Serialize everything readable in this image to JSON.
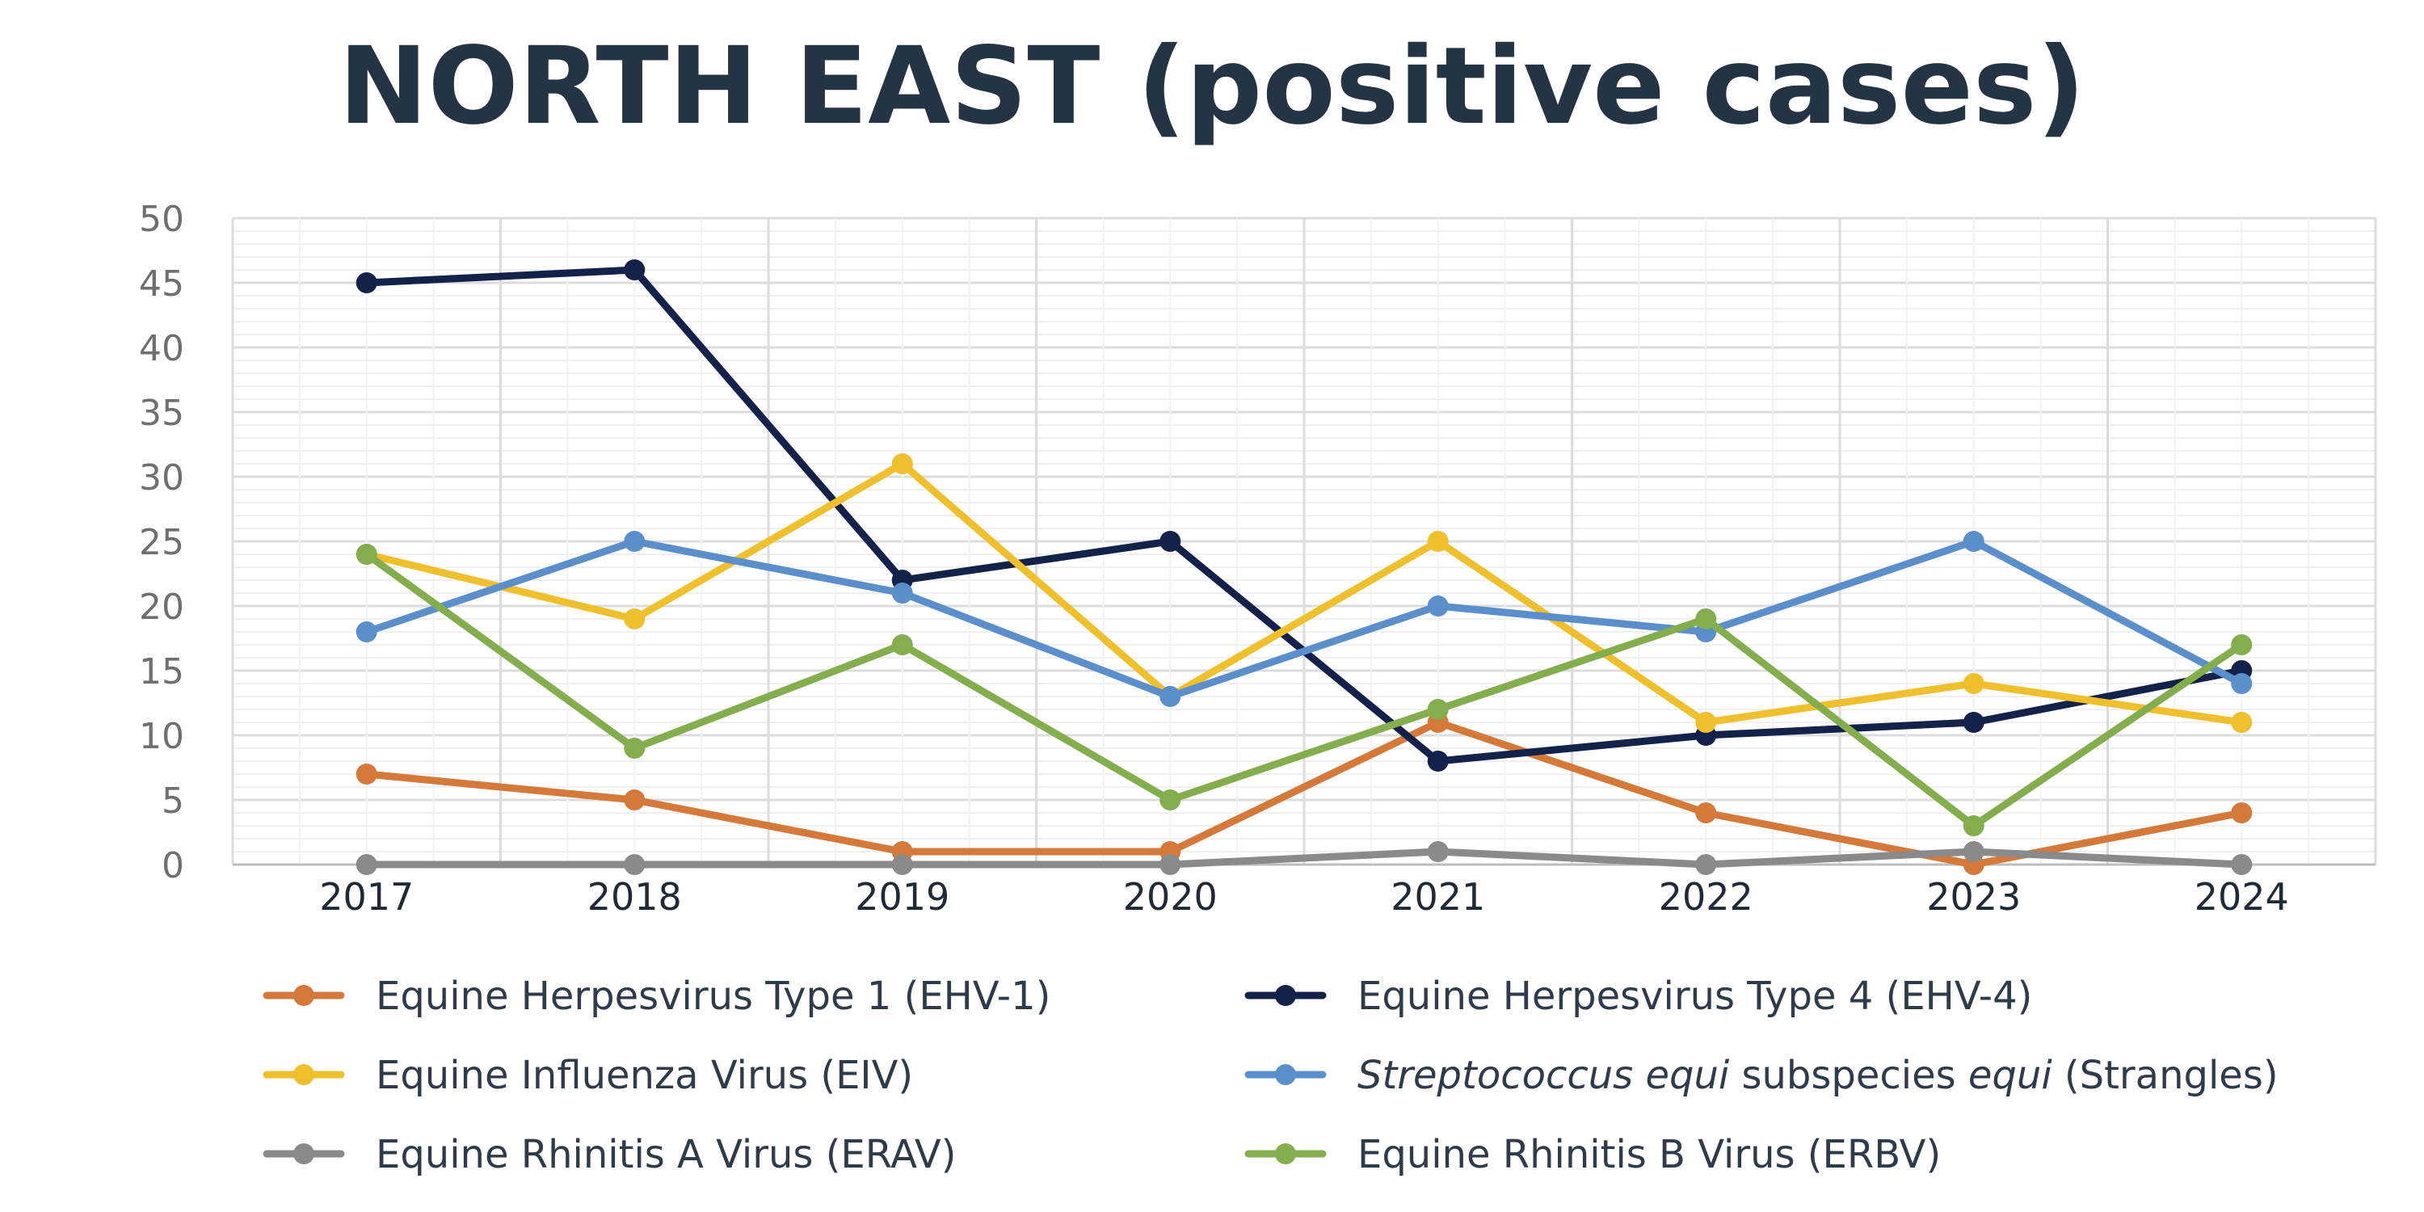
{
  "chart_data": {
    "type": "line",
    "title": "NORTH EAST (positive cases)",
    "categories": [
      "2017",
      "2018",
      "2019",
      "2020",
      "2021",
      "2022",
      "2023",
      "2024"
    ],
    "ylim": [
      0,
      50
    ],
    "yticks": [
      0,
      5,
      10,
      15,
      20,
      25,
      30,
      35,
      40,
      45,
      50
    ],
    "ytick_labels": [
      "0",
      "5",
      "10",
      "15",
      "20",
      "25",
      "30",
      "35",
      "40",
      "45",
      "50"
    ],
    "grid": true,
    "legend_position": "bottom",
    "series": [
      {
        "name": "Equine Herpesvirus Type 1 (EHV-1)",
        "color": "#d4793a",
        "values": [
          7,
          5,
          1,
          1,
          11,
          4,
          0,
          4
        ],
        "label_parts": [
          {
            "text": "Equine Herpesvirus Type 1 (EHV-1)",
            "italic": false
          }
        ]
      },
      {
        "name": "Equine Herpesvirus Type 4 (EHV-4)",
        "color": "#14214a",
        "values": [
          45,
          46,
          22,
          25,
          8,
          10,
          11,
          15
        ],
        "label_parts": [
          {
            "text": "Equine Herpesvirus Type 4 (EHV-4)",
            "italic": false
          }
        ]
      },
      {
        "name": "Equine Influenza Virus (EIV)",
        "color": "#f0bf2e",
        "values": [
          24,
          19,
          31,
          13,
          25,
          11,
          14,
          11
        ],
        "label_parts": [
          {
            "text": "Equine Influenza Virus (EIV)",
            "italic": false
          }
        ]
      },
      {
        "name": "Streptococcus equi subspecies equi (Strangles)",
        "color": "#5b8fcc",
        "values": [
          18,
          25,
          21,
          13,
          20,
          18,
          25,
          14
        ],
        "label_parts": [
          {
            "text": "Streptococcus equi",
            "italic": true
          },
          {
            "text": " subspecies ",
            "italic": false
          },
          {
            "text": "equi",
            "italic": true
          },
          {
            "text": " (Strangles)",
            "italic": false
          }
        ]
      },
      {
        "name": "Equine Rhinitis A Virus (ERAV)",
        "color": "#8a8a8a",
        "values": [
          0,
          0,
          0,
          0,
          1,
          0,
          1,
          0
        ],
        "label_parts": [
          {
            "text": "Equine Rhinitis A Virus (ERAV)",
            "italic": false
          }
        ]
      },
      {
        "name": "Equine Rhinitis B Virus (ERBV)",
        "color": "#84ad4e",
        "values": [
          24,
          9,
          17,
          5,
          12,
          19,
          3,
          17
        ],
        "label_parts": [
          {
            "text": "Equine Rhinitis B Virus (ERBV)",
            "italic": false
          }
        ]
      }
    ]
  }
}
